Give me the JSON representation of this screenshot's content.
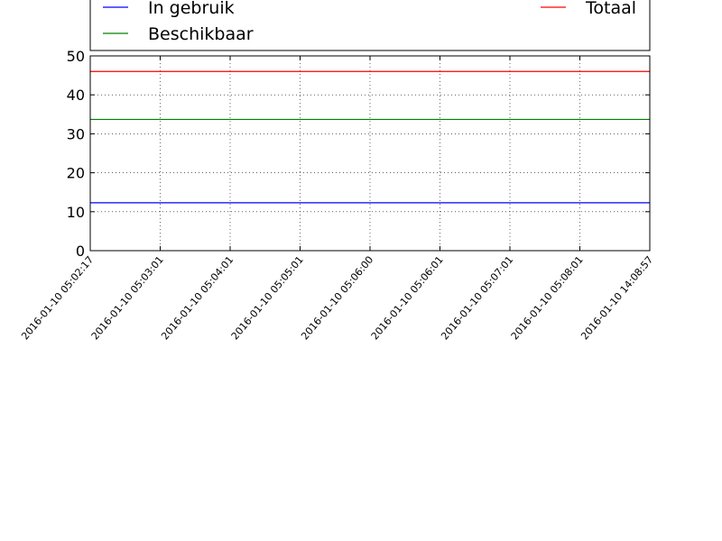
{
  "chart_data": {
    "type": "line",
    "title": "",
    "xlabel": "",
    "ylabel": "",
    "categories": [
      "2016-01-10 05:02:17",
      "2016-01-10 05:03:01",
      "2016-01-10 05:04:01",
      "2016-01-10 05:05:01",
      "2016-01-10 05:06:00",
      "2016-01-10 05:06:01",
      "2016-01-10 05:07:01",
      "2016-01-10 05:08:01",
      "2016-01-10 14:08:57"
    ],
    "series": [
      {
        "name": "In gebruik",
        "color": "#0000ff",
        "values": [
          12.3,
          12.3,
          12.3,
          12.3,
          12.3,
          12.3,
          12.3,
          12.3,
          12.3
        ]
      },
      {
        "name": "Beschikbaar",
        "color": "#008000",
        "values": [
          33.7,
          33.7,
          33.7,
          33.7,
          33.7,
          33.7,
          33.7,
          33.7,
          33.7
        ]
      },
      {
        "name": "Totaal",
        "color": "#ff0000",
        "values": [
          46,
          46,
          46,
          46,
          46,
          46,
          46,
          46,
          46
        ]
      }
    ],
    "ylim": [
      0,
      50
    ],
    "yticks": [
      0,
      10,
      20,
      30,
      40,
      50
    ],
    "grid": true,
    "legend_position": "top"
  }
}
